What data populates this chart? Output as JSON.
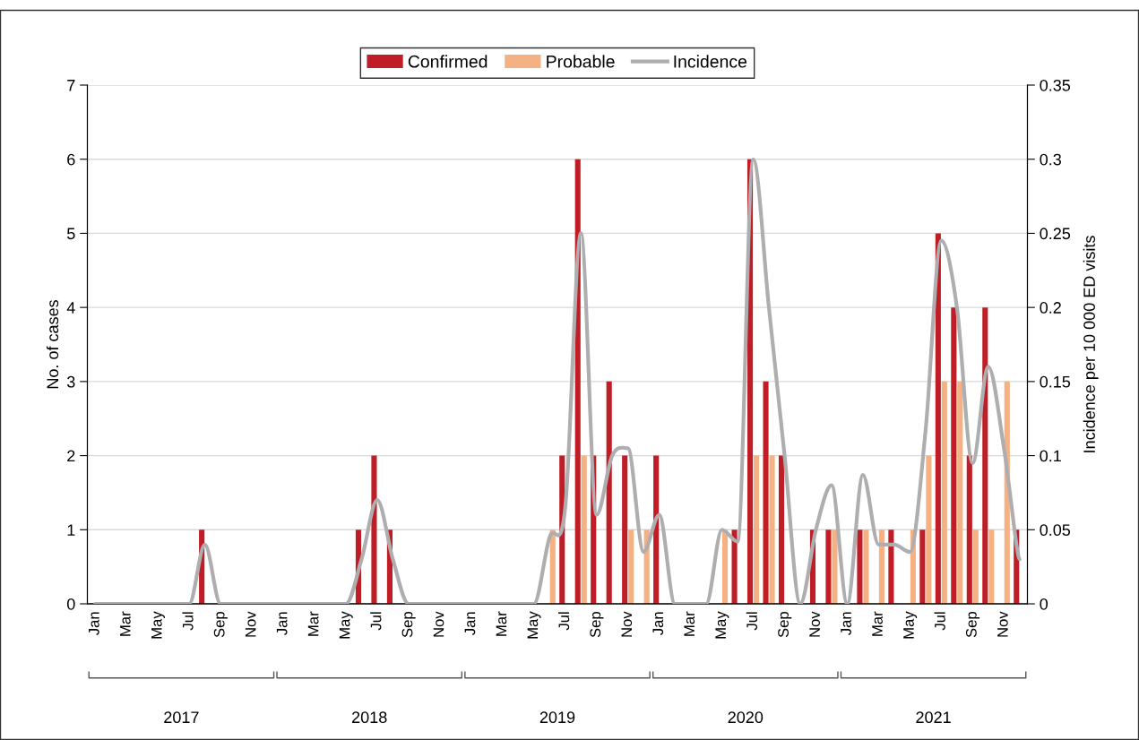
{
  "chart_data": {
    "type": "bar",
    "categories": [
      "Jan",
      null,
      "Mar",
      null,
      "May",
      null,
      "Jul",
      null,
      "Sep",
      null,
      "Nov",
      null,
      "Jan",
      null,
      "Mar",
      null,
      "May",
      null,
      "Jul",
      null,
      "Sep",
      null,
      "Nov",
      null,
      "Jan",
      null,
      "Mar",
      null,
      "May",
      null,
      "Jul",
      null,
      "Sep",
      null,
      "Nov",
      null,
      "Jan",
      null,
      "Mar",
      null,
      "May",
      null,
      "Jul",
      null,
      "Sep",
      null,
      "Nov",
      null,
      "Jan",
      null,
      "Mar",
      null,
      "May",
      null,
      "Jul",
      null,
      "Sep",
      null,
      "Nov",
      null
    ],
    "series": [
      {
        "name": "Confirmed",
        "color": "#c01e27",
        "values": [
          0,
          0,
          0,
          0,
          0,
          0,
          0,
          1,
          0,
          0,
          0,
          0,
          0,
          0,
          0,
          0,
          0,
          1,
          2,
          1,
          0,
          0,
          0,
          0,
          0,
          0,
          0,
          0,
          0,
          0,
          2,
          6,
          2,
          3,
          2,
          0,
          2,
          0,
          0,
          0,
          0,
          1,
          6,
          3,
          2,
          0,
          1,
          1,
          0,
          1,
          0,
          1,
          0,
          1,
          5,
          4,
          2,
          4,
          0,
          1
        ]
      },
      {
        "name": "Probable",
        "color": "#f4b183",
        "values": [
          0,
          0,
          0,
          0,
          0,
          0,
          0,
          0,
          0,
          0,
          0,
          0,
          0,
          0,
          0,
          0,
          0,
          0,
          0,
          0,
          0,
          0,
          0,
          0,
          0,
          0,
          0,
          0,
          0,
          1,
          0,
          2,
          0,
          0,
          1,
          1,
          0,
          0,
          0,
          0,
          1,
          0,
          2,
          2,
          0,
          0,
          0,
          1,
          0,
          1,
          1,
          0,
          1,
          2,
          3,
          3,
          1,
          1,
          3,
          0
        ]
      },
      {
        "name": "Incidence",
        "type": "line",
        "axis": "y2",
        "color": "#aeaeb0",
        "values": [
          0,
          0,
          0,
          0,
          0,
          0,
          0,
          0.04,
          0,
          0,
          0,
          0,
          0,
          0,
          0,
          0,
          0,
          0.03,
          0.07,
          0.03,
          0,
          0,
          0,
          0,
          0,
          0,
          0,
          0,
          0,
          0.045,
          0.065,
          0.25,
          0.06,
          0.1,
          0.105,
          0.035,
          0.06,
          0,
          0,
          0,
          0.05,
          0.042,
          0.3,
          0.2,
          0.1,
          0,
          0.05,
          0.08,
          0,
          0.087,
          0.04,
          0.04,
          0.035,
          0.117,
          0.245,
          0.2,
          0.095,
          0.16,
          0.105,
          0.03
        ]
      }
    ],
    "ylabel": "No. of cases",
    "y2label": "Incidence per 10 000 ED visits",
    "ylim": [
      0,
      7
    ],
    "yticks": [
      0,
      1,
      2,
      3,
      4,
      5,
      6,
      7
    ],
    "y2lim": [
      0,
      0.35
    ],
    "y2ticks": [
      0,
      0.05,
      0.1,
      0.15,
      0.2,
      0.25,
      0.3,
      0.35
    ],
    "grid": "y",
    "legend": "top",
    "annotations": [
      "2017",
      "2018",
      "2019",
      "2020",
      "2021"
    ]
  }
}
